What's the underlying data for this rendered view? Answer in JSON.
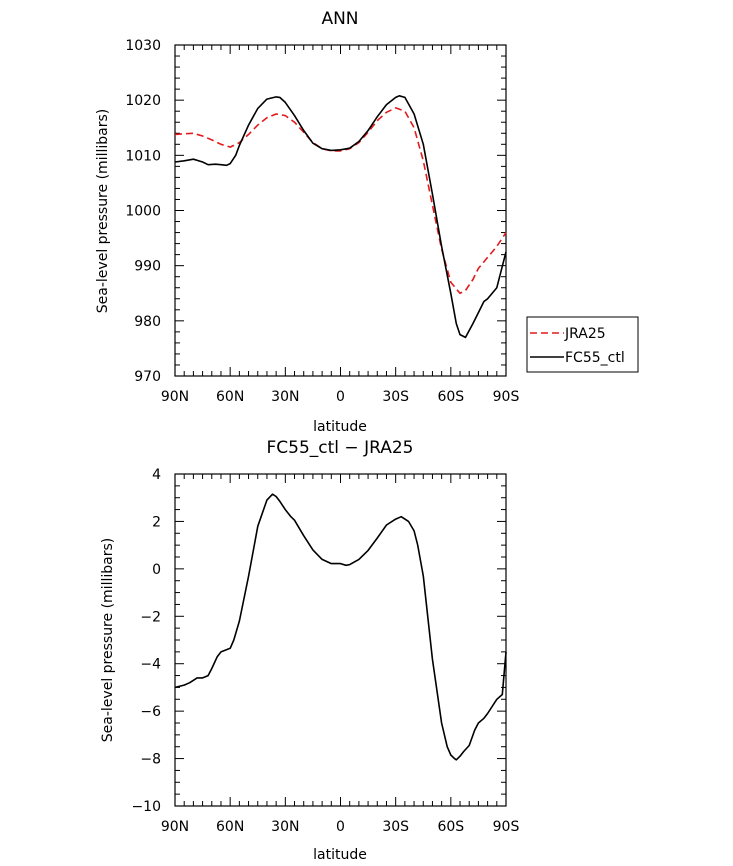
{
  "chart_data": [
    {
      "type": "line",
      "title": "ANN",
      "xlabel": "latitude",
      "ylabel": "Sea-level pressure (millibars)",
      "xlim": [
        -90,
        90
      ],
      "ylim": [
        970,
        1030
      ],
      "x_tick_values": [
        -90,
        -60,
        -30,
        0,
        30,
        60,
        90
      ],
      "x_tick_labels": [
        "90N",
        "60N",
        "30N",
        "0",
        "30S",
        "60S",
        "90S"
      ],
      "y_tick_values": [
        970,
        980,
        990,
        1000,
        1010,
        1020,
        1030
      ],
      "y_tick_labels": [
        "970",
        "980",
        "990",
        "1000",
        "1010",
        "1020",
        "1030"
      ],
      "legend_position": "right",
      "series": [
        {
          "name": "JRA25",
          "color": "#e41a1c",
          "dash": "dashed",
          "x": [
            -90,
            -85,
            -80,
            -75,
            -70,
            -65,
            -60,
            -55,
            -50,
            -45,
            -40,
            -35,
            -30,
            -25,
            -20,
            -15,
            -10,
            -5,
            0,
            5,
            10,
            15,
            20,
            25,
            30,
            35,
            40,
            45,
            50,
            55,
            60,
            65,
            68,
            72,
            75,
            80,
            85,
            90
          ],
          "y": [
            1013.8,
            1013.9,
            1014,
            1013.5,
            1012.8,
            1012,
            1011.5,
            1012.3,
            1013.8,
            1015.5,
            1016.8,
            1017.5,
            1017.2,
            1016,
            1014.2,
            1012.3,
            1011.2,
            1010.8,
            1010.8,
            1011.2,
            1012.3,
            1014.2,
            1016.3,
            1017.8,
            1018.6,
            1018,
            1015,
            1009,
            1001,
            993,
            987,
            985,
            985.5,
            987.5,
            989.5,
            991.5,
            993.5,
            996
          ]
        },
        {
          "name": "FC55_ctl",
          "color": "#000000",
          "dash": "solid",
          "x": [
            -90,
            -85,
            -80,
            -75,
            -72,
            -68,
            -65,
            -62,
            -60,
            -57,
            -55,
            -50,
            -45,
            -40,
            -35,
            -33,
            -30,
            -25,
            -20,
            -15,
            -10,
            -5,
            0,
            5,
            10,
            15,
            20,
            25,
            30,
            32,
            35,
            40,
            45,
            50,
            55,
            60,
            63,
            65,
            68,
            72,
            75,
            78,
            80,
            85,
            90
          ],
          "y": [
            1008.8,
            1009,
            1009.3,
            1008.8,
            1008.3,
            1008.4,
            1008.3,
            1008.2,
            1008.5,
            1010,
            1011.8,
            1015.5,
            1018.5,
            1020.2,
            1020.6,
            1020.5,
            1019.6,
            1017.2,
            1014.5,
            1012.2,
            1011.2,
            1010.9,
            1011,
            1011.3,
            1012.5,
            1014.5,
            1017,
            1019.2,
            1020.5,
            1020.8,
            1020.5,
            1017.5,
            1012,
            1003,
            993.5,
            985,
            979.5,
            977.5,
            977,
            979.5,
            981.5,
            983.5,
            984,
            986,
            992.5
          ]
        }
      ]
    },
    {
      "type": "line",
      "title": "FC55_ctl − JRA25",
      "xlabel": "latitude",
      "ylabel": "Sea-level pressure (millibars)",
      "xlim": [
        -90,
        90
      ],
      "ylim": [
        -10,
        4
      ],
      "x_tick_values": [
        -90,
        -60,
        -30,
        0,
        30,
        60,
        90
      ],
      "x_tick_labels": [
        "90N",
        "60N",
        "30N",
        "0",
        "30S",
        "60S",
        "90S"
      ],
      "y_tick_values": [
        -10,
        -8,
        -6,
        -4,
        -2,
        0,
        2,
        4
      ],
      "y_tick_labels": [
        "−10",
        "−8",
        "−6",
        "−4",
        "−2",
        "0",
        "2",
        "4"
      ],
      "series": [
        {
          "color": "#000000",
          "dash": "solid",
          "x": [
            -90,
            -85,
            -82,
            -78,
            -75,
            -72,
            -70,
            -67,
            -65,
            -60,
            -58,
            -55,
            -50,
            -45,
            -40,
            -37,
            -35,
            -33,
            -30,
            -27,
            -25,
            -20,
            -15,
            -10,
            -5,
            0,
            3,
            5,
            10,
            15,
            20,
            25,
            30,
            33,
            35,
            37,
            40,
            42,
            45,
            50,
            55,
            58,
            60,
            62,
            63,
            65,
            67,
            70,
            73,
            75,
            78,
            80,
            85,
            88,
            90
          ],
          "y": [
            -5,
            -4.9,
            -4.8,
            -4.6,
            -4.6,
            -4.5,
            -4.2,
            -3.7,
            -3.5,
            -3.35,
            -3,
            -2.2,
            -0.3,
            1.8,
            2.9,
            3.15,
            3.05,
            2.85,
            2.5,
            2.2,
            2.05,
            1.4,
            0.8,
            0.4,
            0.22,
            0.22,
            0.15,
            0.18,
            0.4,
            0.78,
            1.3,
            1.85,
            2.1,
            2.2,
            2.1,
            2,
            1.6,
            1,
            -0.3,
            -3.8,
            -6.5,
            -7.5,
            -7.85,
            -8,
            -8.05,
            -7.9,
            -7.7,
            -7.45,
            -6.8,
            -6.5,
            -6.3,
            -6.1,
            -5.5,
            -5.3,
            -3.5
          ]
        }
      ]
    }
  ]
}
